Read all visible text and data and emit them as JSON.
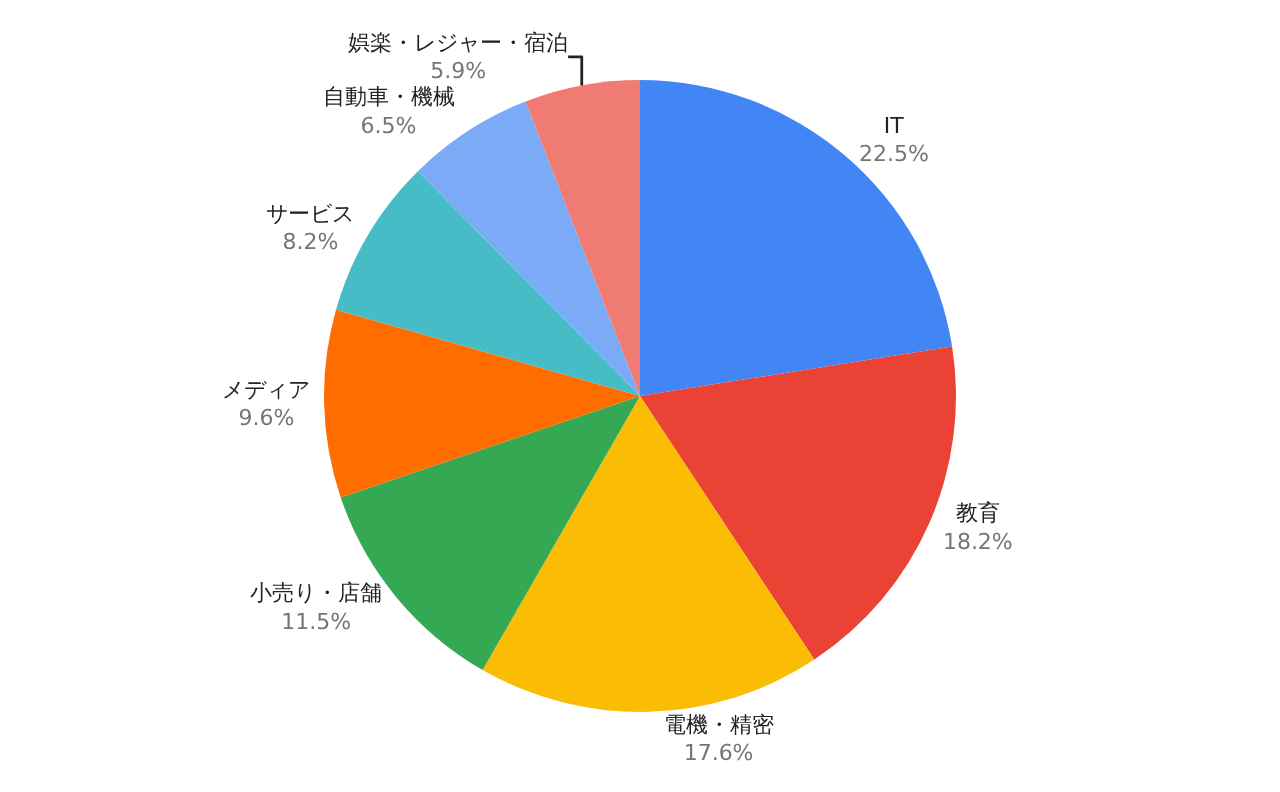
{
  "chart_data": {
    "type": "pie",
    "categories": [
      "IT",
      "教育",
      "電機・精密",
      "小売り・店舗",
      "メディア",
      "サービス",
      "自動車・機械",
      "娯楽・レジャー・宿泊"
    ],
    "values": [
      22.5,
      18.2,
      17.6,
      11.5,
      9.6,
      8.2,
      6.5,
      5.9
    ],
    "value_labels": [
      "22.5%",
      "18.2%",
      "17.6%",
      "11.5%",
      "9.6%",
      "8.2%",
      "6.5%",
      "5.9%"
    ],
    "colors": [
      "#4285f4",
      "#ea4335",
      "#fbbc04",
      "#34a853",
      "#ff6d01",
      "#46bdc6",
      "#7baaf7",
      "#f07b72"
    ],
    "legend": false
  }
}
